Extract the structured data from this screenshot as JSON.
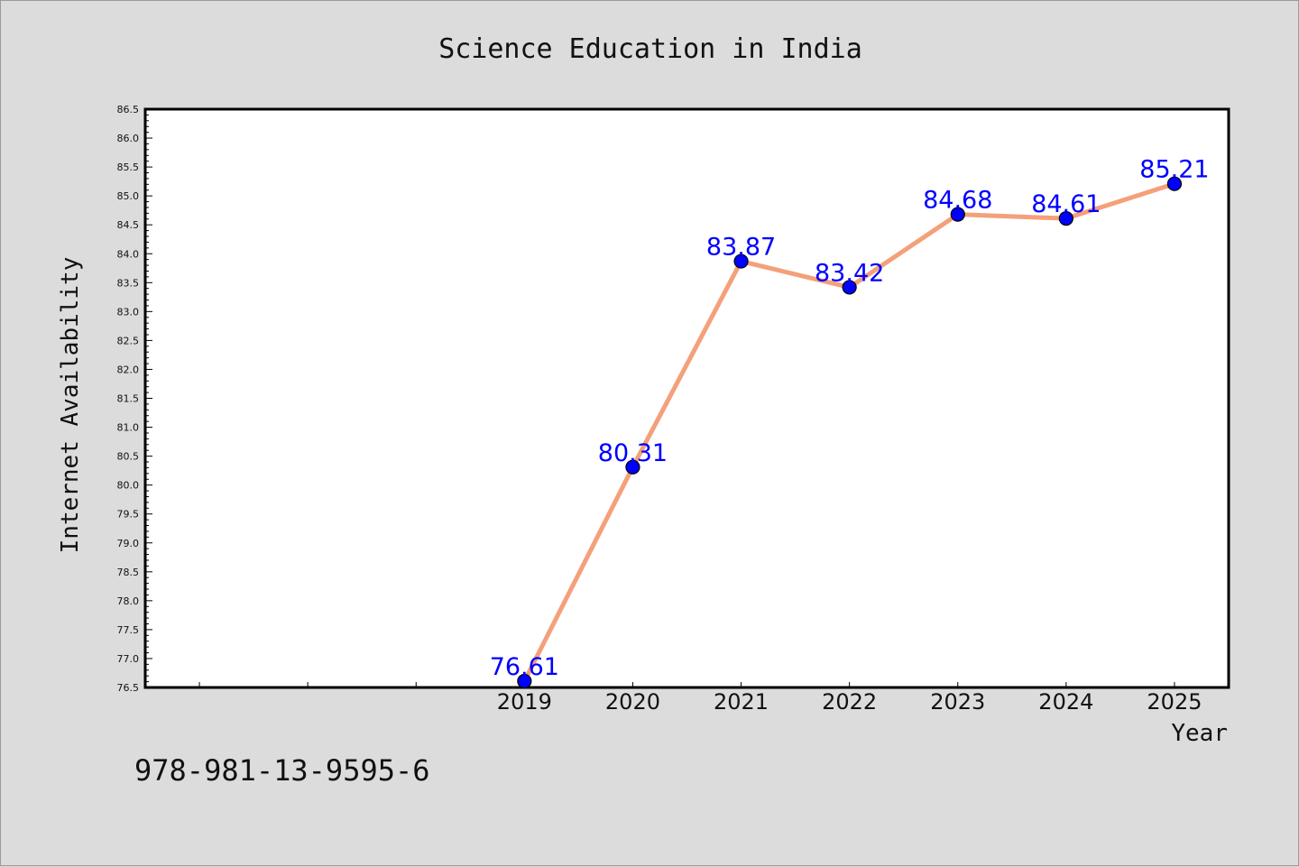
{
  "chart_data": {
    "type": "line",
    "title": "Science Education in India",
    "xlabel": "Year",
    "ylabel": "Internet Availability",
    "categories": [
      "2019",
      "2020",
      "2021",
      "2022",
      "2023",
      "2024",
      "2025"
    ],
    "series": [
      {
        "values": [
          76.61,
          80.31,
          83.87,
          83.42,
          84.68,
          84.61,
          85.21
        ]
      }
    ],
    "data_labels": [
      "76.61",
      "80.31",
      "83.87",
      "83.42",
      "84.68",
      "84.61",
      "85.21"
    ],
    "x_slots_before_first_category": 3,
    "ylim": [
      76.5,
      86.5
    ],
    "yticks": [
      "76.5",
      "77.0",
      "77.5",
      "78.0",
      "78.5",
      "79.0",
      "79.5",
      "80.0",
      "80.5",
      "81.0",
      "81.5",
      "82.0",
      "82.5",
      "83.0",
      "83.5",
      "84.0",
      "84.5",
      "85.0",
      "85.5",
      "86.0",
      "86.5"
    ],
    "grid": false,
    "legend": "none",
    "line_color": "#f4a07a",
    "marker_color": "#0000ff",
    "label_color": "#0000ff"
  },
  "footer": {
    "isbn": "978-981-13-9595-6"
  }
}
